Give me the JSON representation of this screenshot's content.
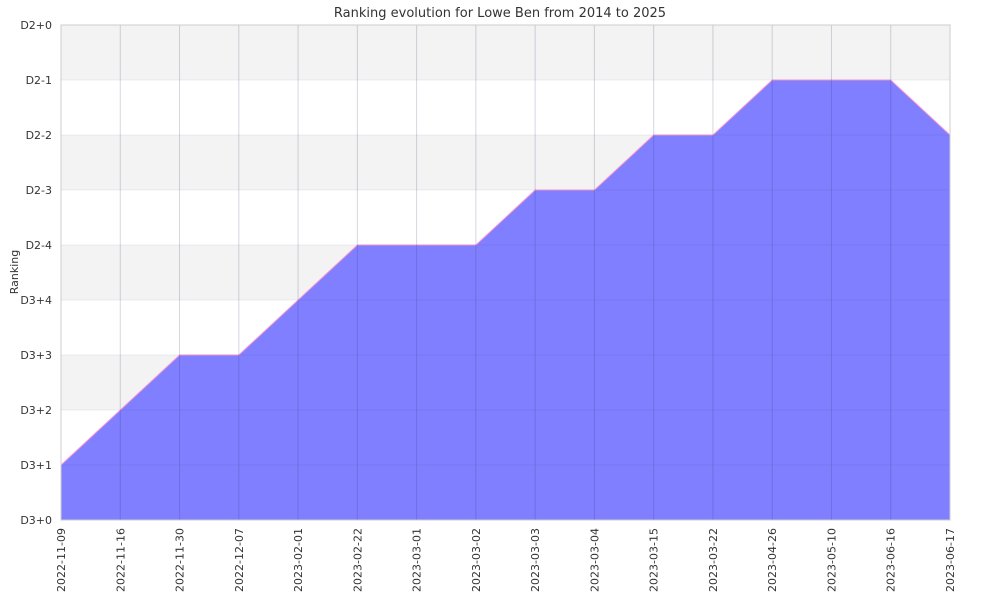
{
  "chart_data": {
    "type": "area",
    "title": "Ranking evolution for Lowe Ben from 2014 to 2025",
    "ylabel": "Ranking",
    "xlabel": "",
    "y_levels": [
      "D3+0",
      "D3+1",
      "D3+2",
      "D3+3",
      "D3+4",
      "D2-4",
      "D2-3",
      "D2-2",
      "D2-1",
      "D2+0"
    ],
    "ylim": [
      0,
      9
    ],
    "categories": [
      "2022-11-09",
      "2022-11-16",
      "2022-11-30",
      "2022-12-07",
      "2023-02-01",
      "2023-02-22",
      "2023-03-01",
      "2023-03-02",
      "2023-03-03",
      "2023-03-04",
      "2023-03-15",
      "2023-03-22",
      "2023-04-26",
      "2023-05-10",
      "2023-06-16",
      "2023-06-17"
    ],
    "series": [
      {
        "values": [
          1,
          2,
          3,
          3,
          4,
          5,
          5,
          5,
          6,
          6,
          7,
          7,
          8,
          8,
          8,
          7
        ]
      }
    ],
    "grid": true,
    "colors": {
      "fill": "#7f7fff",
      "line": "#ff99cc",
      "band": "#f3f3f3",
      "grid": "#cccccc"
    }
  }
}
